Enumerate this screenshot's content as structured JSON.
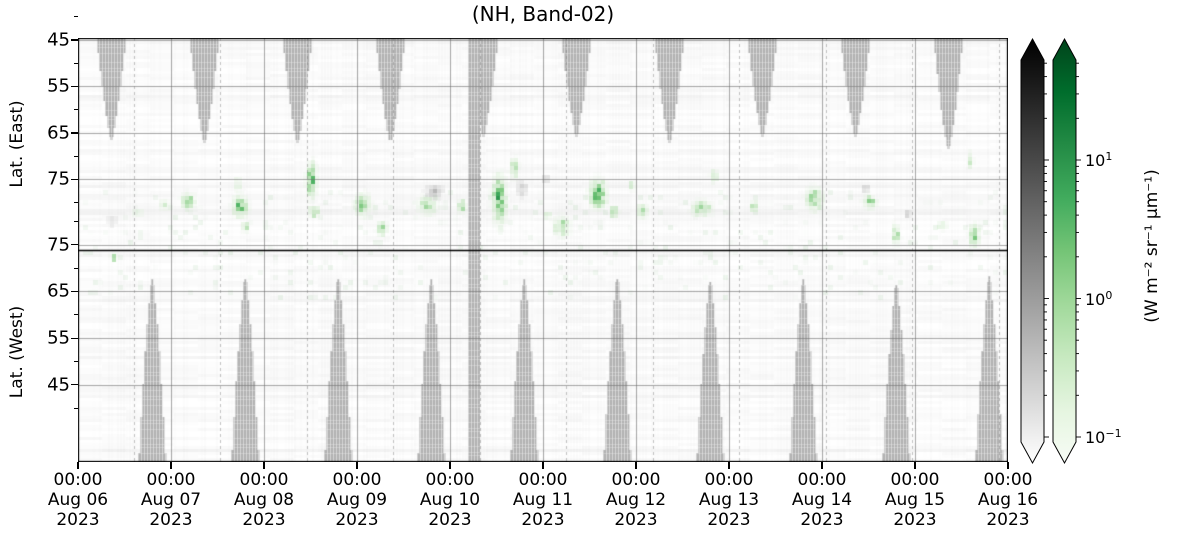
{
  "chart_data": {
    "type": "heatmap",
    "title": "(NH, Band-02)",
    "x_axis": {
      "tick_times": [
        "00:00",
        "00:00",
        "00:00",
        "00:00",
        "00:00",
        "00:00",
        "00:00",
        "00:00",
        "00:00",
        "00:00",
        "00:00"
      ],
      "tick_dates": [
        "Aug 06",
        "Aug 07",
        "Aug 08",
        "Aug 09",
        "Aug 10",
        "Aug 11",
        "Aug 12",
        "Aug 13",
        "Aug 14",
        "Aug 15",
        "Aug 16"
      ],
      "tick_years": [
        "2023",
        "2023",
        "2023",
        "2023",
        "2023",
        "2023",
        "2023",
        "2023",
        "2023",
        "2023",
        "2023"
      ],
      "range_days": [
        0,
        10
      ],
      "minor_dashed_lines": {
        "start_day": 0.6,
        "spacing_days": 0.93,
        "count": 11
      }
    },
    "y_axis": {
      "label_east": "Lat. (East)",
      "label_west": "Lat. (West)",
      "ticks_east": [
        45,
        55,
        65,
        75
      ],
      "ticks_west": [
        75,
        65,
        55,
        45
      ],
      "minor_ticks": [
        40,
        50,
        60,
        70,
        80
      ],
      "lat_range": [
        36.5,
        82
      ],
      "turnaround_lat": 82,
      "turnaround_line_color": "#000000"
    },
    "grid": {
      "on": true,
      "color": "#6e6e6e"
    },
    "colorbar": {
      "label": "(W m⁻² sr⁻¹ μm⁻¹)",
      "scale": "log",
      "ticks": [
        {
          "base": "10",
          "exp": "1",
          "value": 10
        },
        {
          "base": "10",
          "exp": "0",
          "value": 1
        },
        {
          "base": "10",
          "exp": "−1",
          "value": 0.1
        }
      ],
      "bars": [
        {
          "name": "gray",
          "top_color": "#000000",
          "bottom_color": "#ffffff",
          "stops": [
            "#000000",
            "#2a2a2a",
            "#555555",
            "#808080",
            "#aaaaaa",
            "#d4d4d4",
            "#ffffff"
          ]
        },
        {
          "name": "green",
          "top_color": "#00441b",
          "bottom_color": "#f7fcf5",
          "stops": [
            "#00441b",
            "#006d2c",
            "#238b45",
            "#41ab5d",
            "#74c476",
            "#a1d99b",
            "#c7e9c0",
            "#e5f5e0",
            "#f7fcf5"
          ]
        }
      ],
      "extend": "both"
    },
    "coverage_gaps": {
      "description": "gray no-data regions (hatched pcolormesh), one per orbit day",
      "top_gaps": {
        "center_day_offset": 0.36,
        "count": 10,
        "tip_lat_east": 66,
        "half_width_days": 0.155
      },
      "bottom_gaps": {
        "center_day_offset": 0.8,
        "count": 10,
        "tip_lat_west": 67,
        "half_width_days": 0.145
      },
      "full_height_column": {
        "day_start": 4.19,
        "day_end": 4.32
      },
      "gap_color": "#b2b2b2"
    },
    "patch_format": [
      "day",
      "lat",
      "hemisphere",
      "width_days",
      "height_deg",
      "intensity"
    ],
    "green_patches": [
      [
        0.37,
        72.8,
        "W",
        0.06,
        2.2,
        0.7
      ],
      [
        0.63,
        82.0,
        "E",
        0.18,
        2.8,
        0.25
      ],
      [
        0.91,
        80.0,
        "E",
        0.16,
        3.5,
        0.3
      ],
      [
        1.16,
        79.3,
        "E",
        0.2,
        4.8,
        0.5
      ],
      [
        1.7,
        75.5,
        "E",
        0.13,
        3.9,
        0.3
      ],
      [
        1.72,
        80.5,
        "E",
        0.22,
        6.0,
        0.6
      ],
      [
        1.78,
        79.2,
        "W",
        0.13,
        3.0,
        0.4
      ],
      [
        2.49,
        74.6,
        "E",
        0.14,
        9.5,
        0.75
      ],
      [
        2.52,
        81.5,
        "E",
        0.17,
        3.4,
        0.5
      ],
      [
        3.05,
        80.0,
        "E",
        0.22,
        6.5,
        0.5
      ],
      [
        3.25,
        78.8,
        "W",
        0.15,
        4.3,
        0.45
      ],
      [
        3.73,
        80.3,
        "E",
        0.28,
        4.7,
        0.5
      ],
      [
        4.11,
        80.3,
        "E",
        0.15,
        3.9,
        0.45
      ],
      [
        4.51,
        79.0,
        "E",
        0.2,
        13.0,
        0.7
      ],
      [
        4.67,
        72.3,
        "E",
        0.13,
        5.4,
        0.5
      ],
      [
        5.02,
        81.6,
        "W",
        0.11,
        2.6,
        0.4
      ],
      [
        5.18,
        79.4,
        "W",
        0.24,
        5.4,
        0.5
      ],
      [
        5.57,
        77.7,
        "E",
        0.24,
        8.6,
        0.7
      ],
      [
        5.74,
        81.6,
        "E",
        0.13,
        3.4,
        0.5
      ],
      [
        5.94,
        76.0,
        "E",
        0.11,
        3.0,
        0.35
      ],
      [
        6.04,
        81.6,
        "E",
        0.15,
        4.3,
        0.45
      ],
      [
        6.69,
        80.9,
        "E",
        0.28,
        4.3,
        0.55
      ],
      [
        6.82,
        73.8,
        "E",
        0.11,
        3.9,
        0.4
      ],
      [
        7.25,
        80.3,
        "E",
        0.13,
        3.4,
        0.4
      ],
      [
        7.89,
        78.8,
        "E",
        0.24,
        6.5,
        0.55
      ],
      [
        8.49,
        79.4,
        "E",
        0.19,
        3.9,
        0.5
      ],
      [
        8.78,
        77.7,
        "W",
        0.13,
        5.4,
        0.45
      ],
      [
        9.27,
        79.4,
        "W",
        0.15,
        3.0,
        0.35
      ],
      [
        9.57,
        70.2,
        "E",
        0.09,
        5.4,
        0.35
      ],
      [
        9.61,
        77.3,
        "W",
        0.15,
        6.0,
        0.6
      ]
    ],
    "gray_patches": [
      [
        3.81,
        77.3,
        "E",
        0.24,
        3.9,
        0.35
      ],
      [
        4.75,
        76.6,
        "E",
        0.17,
        4.7,
        0.3
      ],
      [
        5.0,
        74.5,
        "E",
        0.11,
        2.6,
        0.3
      ],
      [
        8.45,
        76.6,
        "E",
        0.13,
        2.6,
        0.25
      ],
      [
        8.9,
        82.0,
        "E",
        0.11,
        2.6,
        0.25
      ],
      [
        0.35,
        80.5,
        "W",
        0.18,
        3.0,
        0.2
      ]
    ]
  }
}
